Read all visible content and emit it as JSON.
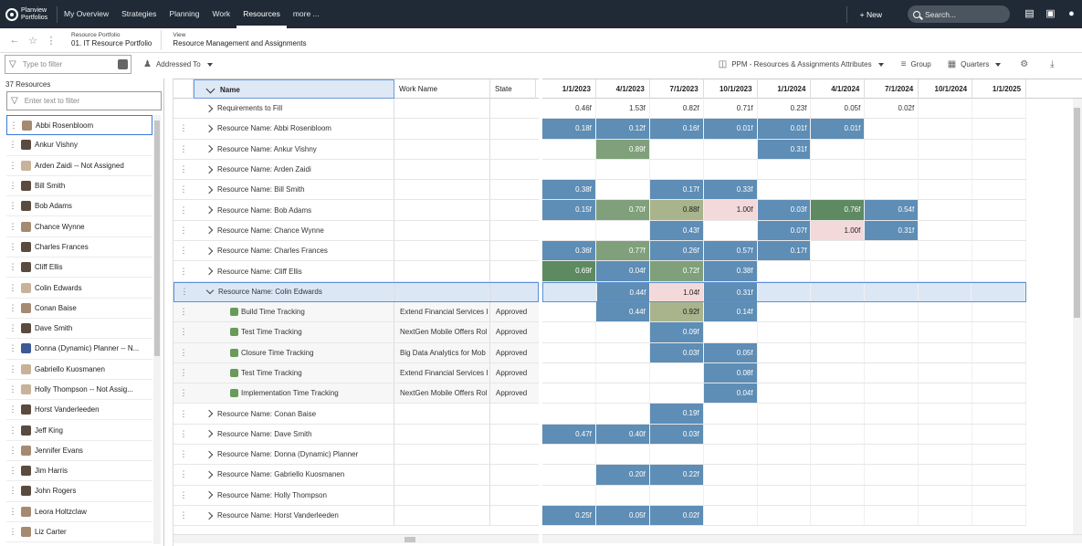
{
  "nav": {
    "logo_line1": "Planview",
    "logo_line2": "Portfolios",
    "items": [
      {
        "label": "My Overview"
      },
      {
        "label": "Strategies"
      },
      {
        "label": "Planning"
      },
      {
        "label": "Work"
      },
      {
        "label": "Resources"
      },
      {
        "label": "more ..."
      }
    ],
    "new_label": "+ New",
    "search_placeholder": "Search..."
  },
  "breadcrumb": {
    "portfolio_label": "Resource Portfolio",
    "portfolio_value": "01. IT Resource Portfolio",
    "view_label": "View",
    "view_value": "Resource Management and Assignments"
  },
  "toolbar": {
    "filter_placeholder": "Type to filter",
    "addressed_to": "Addressed To",
    "attributes": "PPM - Resources & Assignments Attributes",
    "group": "Group",
    "quarters": "Quarters"
  },
  "left": {
    "count": "37 Resources",
    "filter_placeholder": "Enter text to filter",
    "resources": [
      "Abbi Rosenbloom",
      "Ankur Vishny",
      "Arden Zaidi -- Not Assigned",
      "Bill Smith",
      "Bob Adams",
      "Chance Wynne",
      "Charles Frances",
      "Cliff Ellis",
      "Colin Edwards",
      "Conan Baise",
      "Dave Smith",
      "Donna (Dynamic) Planner -- N...",
      "Gabriello Kuosmanen",
      "Holly Thompson -- Not Assig...",
      "Horst Vanderleeden",
      "Jeff King",
      "Jennifer Evans",
      "Jim Harris",
      "John Rogers",
      "Leora Holtzclaw",
      "Liz Carter"
    ]
  },
  "grid": {
    "col_name": "Name",
    "col_work": "Work Name",
    "col_state": "State",
    "quarters": [
      "1/1/2023",
      "4/1/2023",
      "7/1/2023",
      "10/1/2023",
      "1/1/2024",
      "4/1/2024",
      "7/1/2024",
      "10/1/2024",
      "1/1/2025"
    ],
    "rows": [
      {
        "name": "Requirements to Fill",
        "work": "",
        "state": ""
      },
      {
        "name": "Resource Name: Abbi Rosenbloom",
        "work": "",
        "state": ""
      },
      {
        "name": "Resource Name: Ankur Vishny",
        "work": "",
        "state": ""
      },
      {
        "name": "Resource Name: Arden Zaidi",
        "work": "",
        "state": ""
      },
      {
        "name": "Resource Name: Bill Smith",
        "work": "",
        "state": ""
      },
      {
        "name": "Resource Name: Bob Adams",
        "work": "",
        "state": ""
      },
      {
        "name": "Resource Name: Chance Wynne",
        "work": "",
        "state": ""
      },
      {
        "name": "Resource Name: Charles Frances",
        "work": "",
        "state": ""
      },
      {
        "name": "Resource Name: Cliff Ellis",
        "work": "",
        "state": ""
      },
      {
        "name": "Resource Name: Colin Edwards",
        "work": "",
        "state": ""
      },
      {
        "name": "Build Time Tracking",
        "work": "Extend Financial Services I",
        "state": "Approved"
      },
      {
        "name": "Test Time Tracking",
        "work": "NextGen Mobile Offers Rol",
        "state": "Approved"
      },
      {
        "name": "Closure Time Tracking",
        "work": "Big Data Analytics for Mob",
        "state": "Approved"
      },
      {
        "name": "Test Time Tracking",
        "work": "Extend Financial Services I",
        "state": "Approved"
      },
      {
        "name": "Implementation Time Tracking",
        "work": "NextGen Mobile Offers Rol",
        "state": "Approved"
      },
      {
        "name": "Resource Name: Conan Baise",
        "work": "",
        "state": ""
      },
      {
        "name": "Resource Name: Dave Smith",
        "work": "",
        "state": ""
      },
      {
        "name": "Resource Name: Donna (Dynamic) Planner",
        "work": "",
        "state": ""
      },
      {
        "name": "Resource Name: Gabriello Kuosmanen",
        "work": "",
        "state": ""
      },
      {
        "name": "Resource Name: Holly Thompson",
        "work": "",
        "state": ""
      },
      {
        "name": "Resource Name: Horst Vanderleeden",
        "work": "",
        "state": ""
      }
    ],
    "cells": [
      [
        "0.46f",
        "1.53f",
        "0.82f",
        "0.71f",
        "0.23f",
        "0.05f",
        "0.02f",
        "",
        ""
      ],
      [
        "0.18f",
        "0.12f",
        "0.16f",
        "0.01f",
        "0.01f",
        "0.01f",
        "",
        "",
        ""
      ],
      [
        "",
        "0.89f",
        "",
        "",
        "0.31f",
        "",
        "",
        "",
        ""
      ],
      [
        "",
        "",
        "",
        "",
        "",
        "",
        "",
        "",
        ""
      ],
      [
        "0.38f",
        "",
        "0.17f",
        "0.33f",
        "",
        "",
        "",
        "",
        ""
      ],
      [
        "0.15f",
        "0.70f",
        "0.88f",
        "1.00f",
        "0.03f",
        "0.76f",
        "0.54f",
        "",
        ""
      ],
      [
        "",
        "",
        "0.43f",
        "",
        "0.07f",
        "1.00f",
        "0.31f",
        "",
        ""
      ],
      [
        "0.36f",
        "0.77f",
        "0.26f",
        "0.57f",
        "0.17f",
        "",
        "",
        "",
        ""
      ],
      [
        "0.69f",
        "0.04f",
        "0.72f",
        "0.38f",
        "",
        "",
        "",
        "",
        ""
      ],
      [
        "",
        "0.44f",
        "1.04f",
        "0.31f",
        "",
        "",
        "",
        "",
        ""
      ],
      [
        "",
        "0.44f",
        "0.92f",
        "0.14f",
        "",
        "",
        "",
        "",
        ""
      ],
      [
        "",
        "",
        "0.09f",
        "",
        "",
        "",
        "",
        "",
        ""
      ],
      [
        "",
        "",
        "0.03f",
        "0.05f",
        "",
        "",
        "",
        "",
        ""
      ],
      [
        "",
        "",
        "",
        "0.08f",
        "",
        "",
        "",
        "",
        ""
      ],
      [
        "",
        "",
        "",
        "0.04f",
        "",
        "",
        "",
        "",
        ""
      ],
      [
        "",
        "",
        "0.19f",
        "",
        "",
        "",
        "",
        "",
        ""
      ],
      [
        "0.47f",
        "0.40f",
        "0.03f",
        "",
        "",
        "",
        "",
        "",
        ""
      ],
      [
        "",
        "",
        "",
        "",
        "",
        "",
        "",
        "",
        ""
      ],
      [
        "",
        "0.20f",
        "0.22f",
        "",
        "",
        "",
        "",
        "",
        ""
      ],
      [
        "",
        "",
        "",
        "",
        "",
        "",
        "",
        "",
        ""
      ],
      [
        "0.25f",
        "0.05f",
        "0.02f",
        "",
        "",
        "",
        "",
        "",
        ""
      ]
    ],
    "colors": [
      [
        "",
        "",
        "",
        "",
        "",
        "",
        "",
        "",
        ""
      ],
      [
        "b",
        "b",
        "b",
        "b",
        "b",
        "b",
        "",
        "",
        ""
      ],
      [
        "",
        "g",
        "",
        "",
        "b",
        "",
        "",
        "",
        ""
      ],
      [
        "",
        "",
        "",
        "",
        "",
        "",
        "",
        "",
        ""
      ],
      [
        "b",
        "",
        "b",
        "b",
        "",
        "",
        "",
        "",
        ""
      ],
      [
        "b",
        "g",
        "y",
        "p",
        "b",
        "dg",
        "b",
        "",
        ""
      ],
      [
        "",
        "",
        "b",
        "",
        "b",
        "p",
        "b",
        "",
        ""
      ],
      [
        "b",
        "g",
        "b",
        "b",
        "b",
        "",
        "",
        "",
        ""
      ],
      [
        "dg",
        "b",
        "g",
        "b",
        "",
        "",
        "",
        "",
        ""
      ],
      [
        "",
        "b",
        "p",
        "b",
        "",
        "",
        "",
        "",
        ""
      ],
      [
        "",
        "b",
        "y",
        "b",
        "",
        "",
        "",
        "",
        ""
      ],
      [
        "",
        "",
        "b",
        "",
        "",
        "",
        "",
        "",
        ""
      ],
      [
        "",
        "",
        "b",
        "b",
        "",
        "",
        "",
        "",
        ""
      ],
      [
        "",
        "",
        "",
        "b",
        "",
        "",
        "",
        "",
        ""
      ],
      [
        "",
        "",
        "",
        "b",
        "",
        "",
        "",
        "",
        ""
      ],
      [
        "",
        "",
        "b",
        "",
        "",
        "",
        "",
        "",
        ""
      ],
      [
        "b",
        "b",
        "b",
        "",
        "",
        "",
        "",
        "",
        ""
      ],
      [
        "",
        "",
        "",
        "",
        "",
        "",
        "",
        "",
        ""
      ],
      [
        "",
        "b",
        "b",
        "",
        "",
        "",
        "",
        "",
        ""
      ],
      [
        "",
        "",
        "",
        "",
        "",
        "",
        "",
        "",
        ""
      ],
      [
        "b",
        "b",
        "b",
        "",
        "",
        "",
        "",
        "",
        ""
      ]
    ]
  }
}
